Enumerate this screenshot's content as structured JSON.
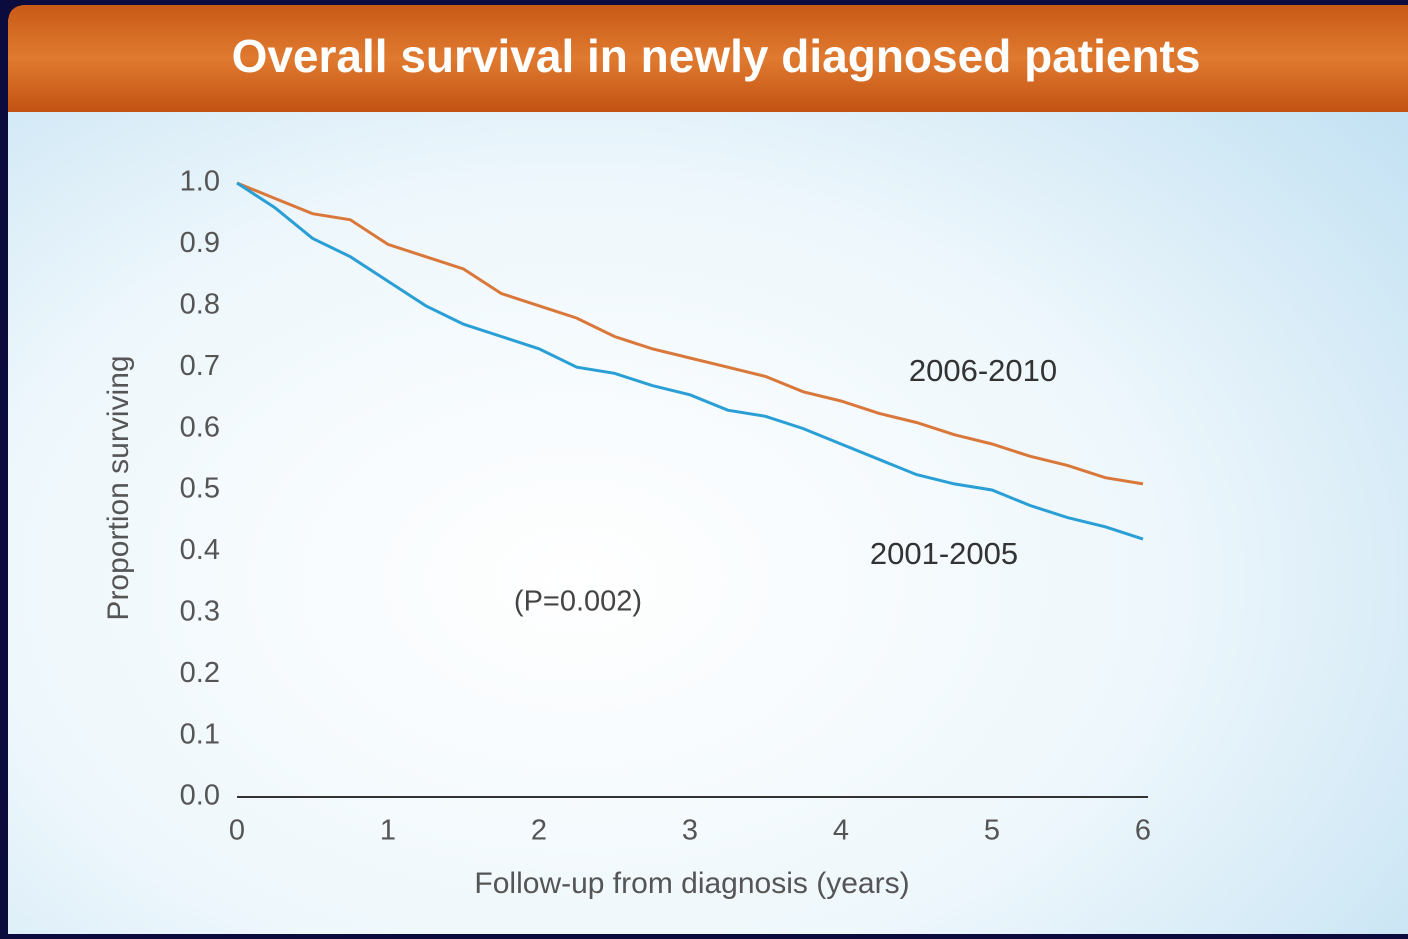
{
  "chart_data": {
    "type": "line",
    "title": "Overall survival in newly diagnosed patients",
    "x_label": "Follow-up from diagnosis (years)",
    "y_label": "Proportion surviving",
    "annotation": "(P=0.002)",
    "xlim": [
      0,
      6
    ],
    "xticks": [
      0,
      1,
      2,
      3,
      4,
      5,
      6
    ],
    "ylim": [
      0,
      1
    ],
    "yticks": [
      {
        "value": 0,
        "label": "0.0"
      },
      0.1,
      0.2,
      0.3,
      0.4,
      0.5,
      0.6,
      0.7,
      0.8,
      0.9,
      {
        "value": 1,
        "label": "1.0"
      }
    ],
    "grid": false,
    "series": [
      {
        "name": "2006-2010",
        "color": "#d9783a",
        "x": [
          0,
          0.25,
          0.5,
          0.75,
          1,
          1.25,
          1.5,
          1.75,
          2,
          2.25,
          2.5,
          2.75,
          3,
          3.25,
          3.5,
          3.75,
          4,
          4.25,
          4.5,
          4.75,
          5,
          5.25,
          5.5,
          5.75,
          6
        ],
        "values": [
          1.0,
          0.975,
          0.95,
          0.94,
          0.9,
          0.88,
          0.86,
          0.82,
          0.8,
          0.78,
          0.75,
          0.73,
          0.715,
          0.7,
          0.685,
          0.66,
          0.645,
          0.625,
          0.61,
          0.59,
          0.575,
          0.555,
          0.54,
          0.52,
          0.51
        ]
      },
      {
        "name": "2001-2005",
        "color": "#2a9fd6",
        "x": [
          0,
          0.25,
          0.5,
          0.75,
          1,
          1.25,
          1.5,
          1.75,
          2,
          2.25,
          2.5,
          2.75,
          3,
          3.25,
          3.5,
          3.75,
          4,
          4.25,
          4.5,
          4.75,
          5,
          5.25,
          5.5,
          5.75,
          6
        ],
        "values": [
          1.0,
          0.96,
          0.91,
          0.88,
          0.84,
          0.8,
          0.77,
          0.75,
          0.73,
          0.7,
          0.69,
          0.67,
          0.655,
          0.63,
          0.62,
          0.6,
          0.575,
          0.55,
          0.525,
          0.51,
          0.5,
          0.475,
          0.455,
          0.44,
          0.42
        ]
      }
    ]
  }
}
